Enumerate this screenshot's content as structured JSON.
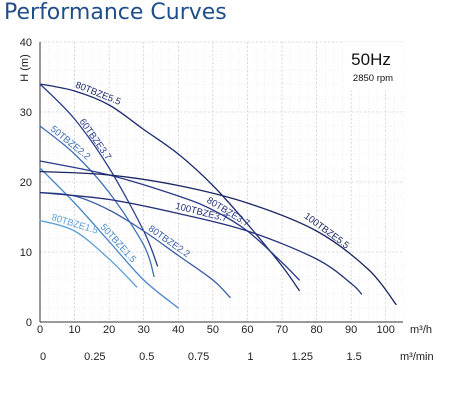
{
  "title": "Performance Curves",
  "info": {
    "frequency": "50Hz",
    "speed": "2850 rpm"
  },
  "chart_data": {
    "type": "line",
    "title": "Performance Curves",
    "ylabel": "H (m)",
    "xlabel": "m³/h",
    "xlabel2": "m³/min",
    "xlim": [
      0,
      105
    ],
    "ylim": [
      0,
      40
    ],
    "x_ticks": [
      "0",
      "10",
      "20",
      "30",
      "40",
      "50",
      "60",
      "70",
      "80",
      "90",
      "100"
    ],
    "x2_ticks": [
      "0",
      "0.25",
      "0.5",
      "0.75",
      "1",
      "1.25",
      "1.5"
    ],
    "y_ticks": [
      "0",
      "10",
      "20",
      "30",
      "40"
    ],
    "grid": true,
    "series": [
      {
        "name": "80TBZE5.5",
        "color": "#1e2a6e",
        "x": [
          0,
          10,
          20,
          30,
          40,
          50,
          60,
          70,
          75
        ],
        "y": [
          34,
          33,
          31,
          27.5,
          24,
          19.5,
          14,
          8,
          4.5
        ]
      },
      {
        "name": "60TBZE3.7",
        "color": "#2d3f8f",
        "x": [
          0,
          10,
          20,
          30,
          34
        ],
        "y": [
          34,
          29,
          22,
          13,
          8
        ]
      },
      {
        "name": "50TBZE2.2",
        "color": "#3d6fb5",
        "x": [
          0,
          10,
          20,
          30,
          33
        ],
        "y": [
          28,
          24,
          18.5,
          11,
          6.5
        ]
      },
      {
        "name": "50TBZE1.5",
        "color": "#4a86c8",
        "x": [
          0,
          10,
          20,
          30,
          40
        ],
        "y": [
          22,
          17,
          11.5,
          6,
          2
        ]
      },
      {
        "name": "80TBZE1.5",
        "color": "#5fa0d8",
        "x": [
          0,
          10,
          20,
          28
        ],
        "y": [
          14.5,
          13,
          9,
          5
        ]
      },
      {
        "name": "80TBZE2.2",
        "color": "#3a5ea8",
        "x": [
          0,
          10,
          20,
          30,
          40,
          50,
          55
        ],
        "y": [
          18.5,
          18,
          16,
          13,
          9.5,
          6,
          3.5
        ]
      },
      {
        "name": "80TBZE3.7",
        "color": "#2a3a88",
        "x": [
          0,
          20,
          40,
          50,
          60,
          70,
          75
        ],
        "y": [
          23,
          21,
          18,
          16,
          13,
          8.5,
          6
        ]
      },
      {
        "name": "100TBZE3.7",
        "color": "#24307a",
        "x": [
          0,
          20,
          40,
          60,
          80,
          90,
          93
        ],
        "y": [
          18.5,
          17.5,
          15.5,
          13,
          9,
          5.5,
          4
        ]
      },
      {
        "name": "100TBZE5.5",
        "color": "#1a2560",
        "x": [
          0,
          20,
          40,
          60,
          80,
          95,
          103
        ],
        "y": [
          21.5,
          21,
          19.5,
          17,
          13,
          7.5,
          2.5
        ]
      }
    ]
  }
}
